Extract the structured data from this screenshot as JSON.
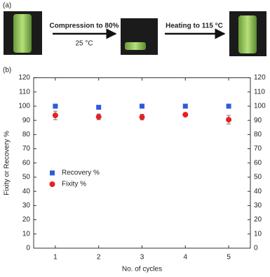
{
  "panel_a": {
    "label": "(a)",
    "step1_text": "Compression to 80%",
    "step1_condition": "25 °C",
    "step2_text": "Heating to 115 °C"
  },
  "chart_data": {
    "type": "scatter",
    "panel_label": "(b)",
    "x_label": "No. of cycles",
    "y_label": "Fixity or Recovery %",
    "x": [
      1,
      2,
      3,
      4,
      5
    ],
    "series": [
      {
        "name": "Recovery %",
        "color": "#2e5bd6",
        "marker": "square",
        "values": [
          100,
          99.2,
          100,
          100,
          100
        ]
      },
      {
        "name": "Fixity %",
        "color": "#e8201f",
        "marker": "circle",
        "values": [
          93.5,
          92.5,
          92.3,
          94,
          90.5
        ],
        "errors": [
          3,
          2,
          2,
          0.5,
          3
        ]
      }
    ],
    "xlim": [
      0.5,
      5.5
    ],
    "xticks": [
      1,
      2,
      3,
      4,
      5
    ],
    "ylim": [
      0,
      120
    ],
    "yticks": [
      0,
      10,
      20,
      30,
      40,
      50,
      60,
      70,
      80,
      90,
      100,
      110,
      120
    ],
    "right_axis_mirror": true,
    "grid": false
  }
}
